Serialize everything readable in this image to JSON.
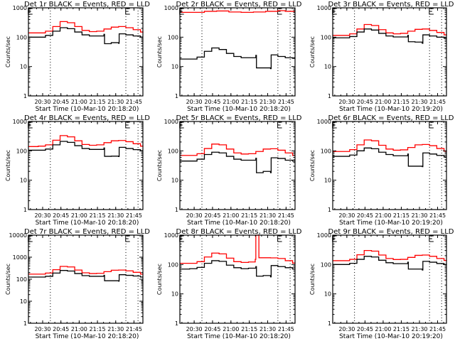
{
  "chart_data": [
    {
      "type": "line",
      "title": "Det 1r BLACK = Events, RED = LLD",
      "xlabel": "Start Time (10-Mar-10 20:18:20)",
      "ylabel": "Counts/sec",
      "yscale": "log",
      "ylim": [
        1,
        1000
      ],
      "yticks": [
        "1",
        "10",
        "100",
        "1000"
      ],
      "xticks": [
        "20:30",
        "20:45",
        "21:00",
        "21:15",
        "21:30",
        "21:45"
      ],
      "xlim_minutes": [
        20.0,
        114.0
      ],
      "event_marks_minutes": [
        38.0,
        100.0,
        110.0
      ],
      "series": [
        {
          "name": "LLD",
          "color": "#ff0000",
          "x": [
            20,
            28,
            34,
            40,
            46,
            52,
            58,
            64,
            70,
            76,
            82,
            88,
            94,
            100,
            106,
            112,
            114
          ],
          "values": [
            140,
            140,
            160,
            230,
            340,
            310,
            230,
            170,
            155,
            160,
            190,
            220,
            230,
            210,
            180,
            150,
            140
          ]
        },
        {
          "name": "Events",
          "color": "#000000",
          "x": [
            20,
            28,
            34,
            40,
            46,
            52,
            58,
            64,
            70,
            76,
            82,
            82.5,
            88,
            94,
            94.5,
            100,
            106,
            112,
            114
          ],
          "values": [
            100,
            100,
            115,
            160,
            210,
            195,
            150,
            120,
            110,
            110,
            125,
            60,
            65,
            62,
            130,
            120,
            110,
            100,
            100
          ]
        }
      ]
    },
    {
      "type": "line",
      "title": "Det 2r BLACK = Events, RED = LLD",
      "xlabel": "Start Time (10-Mar-10 20:18:20)",
      "ylabel": "Counts/sec",
      "yscale": "log",
      "ylim": [
        1,
        1000
      ],
      "yticks": [
        "1",
        "10",
        "100",
        "1000"
      ],
      "xticks": [
        "20:30",
        "20:45",
        "21:00",
        "21:15",
        "21:30",
        "21:45"
      ],
      "xlim_minutes": [
        20.0,
        114.0
      ],
      "event_marks_minutes": [
        38.0,
        100.0,
        110.0
      ],
      "series": [
        {
          "name": "LLD",
          "color": "#ff0000",
          "x": [
            20,
            30,
            40,
            50,
            60,
            70,
            80,
            90,
            100,
            106,
            114
          ],
          "values": [
            700,
            700,
            760,
            780,
            720,
            700,
            720,
            760,
            800,
            760,
            760
          ]
        },
        {
          "name": "Events",
          "color": "#000000",
          "x": [
            20,
            28,
            34,
            40,
            46,
            52,
            58,
            64,
            70,
            76,
            82,
            82.5,
            88,
            94,
            94.5,
            100,
            106,
            112,
            114
          ],
          "values": [
            18,
            18,
            21,
            33,
            43,
            38,
            28,
            22,
            20,
            20,
            24,
            9,
            9,
            8.5,
            25,
            22,
            20,
            19,
            19
          ]
        }
      ]
    },
    {
      "type": "line",
      "title": "Det 3r BLACK = Events, RED = LLD",
      "xlabel": "Start Time (10-Mar-10 20:19:20)",
      "ylabel": "Counts/sec",
      "yscale": "log",
      "ylim": [
        1,
        1000
      ],
      "yticks": [
        "1",
        "10",
        "100",
        "1000"
      ],
      "xticks": [
        "20:30",
        "20:45",
        "21:00",
        "21:15",
        "21:30",
        "21:45"
      ],
      "xlim_minutes": [
        20.0,
        114.0
      ],
      "event_marks_minutes": [
        38.0,
        100.0,
        110.0
      ],
      "series": [
        {
          "name": "LLD",
          "color": "#ff0000",
          "x": [
            20,
            28,
            34,
            40,
            46,
            52,
            58,
            64,
            70,
            76,
            82,
            88,
            94,
            100,
            106,
            112,
            114
          ],
          "values": [
            115,
            115,
            130,
            190,
            270,
            250,
            180,
            140,
            130,
            135,
            160,
            185,
            190,
            170,
            145,
            120,
            115
          ]
        },
        {
          "name": "Events",
          "color": "#000000",
          "x": [
            20,
            28,
            34,
            40,
            46,
            52,
            58,
            64,
            70,
            76,
            82,
            82.5,
            88,
            94,
            94.5,
            100,
            106,
            112,
            114
          ],
          "values": [
            95,
            95,
            105,
            150,
            190,
            175,
            135,
            110,
            102,
            102,
            115,
            70,
            68,
            62,
            120,
            110,
            100,
            92,
            92
          ]
        }
      ]
    },
    {
      "type": "line",
      "title": "Det 4r BLACK = Events, RED = LLD",
      "xlabel": "Start Time (10-Mar-10 20:18:20)",
      "ylabel": "Counts/sec",
      "yscale": "log",
      "ylim": [
        1,
        1000
      ],
      "yticks": [
        "1",
        "10",
        "100",
        "1000"
      ],
      "xticks": [
        "20:30",
        "20:45",
        "21:00",
        "21:15",
        "21:30",
        "21:45"
      ],
      "xlim_minutes": [
        20.0,
        114.0
      ],
      "event_marks_minutes": [
        38.0,
        100.0,
        110.0
      ],
      "series": [
        {
          "name": "LLD",
          "color": "#ff0000",
          "x": [
            20,
            28,
            34,
            40,
            46,
            52,
            58,
            64,
            70,
            76,
            82,
            88,
            94,
            100,
            106,
            112,
            114
          ],
          "values": [
            140,
            145,
            160,
            230,
            330,
            300,
            220,
            165,
            155,
            160,
            190,
            220,
            225,
            205,
            175,
            145,
            140
          ]
        },
        {
          "name": "Events",
          "color": "#000000",
          "x": [
            20,
            28,
            34,
            40,
            46,
            52,
            58,
            64,
            70,
            76,
            82,
            82.5,
            88,
            94,
            94.5,
            100,
            106,
            112,
            114
          ],
          "values": [
            105,
            105,
            115,
            160,
            210,
            195,
            150,
            120,
            112,
            112,
            125,
            65,
            66,
            64,
            132,
            120,
            110,
            100,
            100
          ]
        }
      ]
    },
    {
      "type": "line",
      "title": "Det 5r BLACK = Events, RED = LLD",
      "xlabel": "Start Time (10-Mar-10 20:18:20)",
      "ylabel": "Counts/sec",
      "yscale": "log",
      "ylim": [
        1,
        1000
      ],
      "yticks": [
        "1",
        "10",
        "100",
        "1000"
      ],
      "xticks": [
        "20:30",
        "20:45",
        "21:00",
        "21:15",
        "21:30",
        "21:45"
      ],
      "xlim_minutes": [
        20.0,
        114.0
      ],
      "event_marks_minutes": [
        38.0,
        100.0,
        110.0
      ],
      "series": [
        {
          "name": "LLD",
          "color": "#ff0000",
          "x": [
            20,
            28,
            34,
            40,
            46,
            52,
            58,
            64,
            70,
            76,
            82,
            88,
            94,
            100,
            106,
            112,
            114
          ],
          "values": [
            70,
            70,
            80,
            120,
            170,
            160,
            115,
            85,
            78,
            80,
            95,
            115,
            118,
            105,
            85,
            70,
            70
          ]
        },
        {
          "name": "Events",
          "color": "#000000",
          "x": [
            20,
            28,
            34,
            40,
            46,
            52,
            58,
            64,
            70,
            76,
            82,
            82.5,
            88,
            94,
            94.5,
            100,
            106,
            112,
            114
          ],
          "values": [
            45,
            45,
            52,
            75,
            90,
            85,
            65,
            52,
            48,
            48,
            56,
            18,
            20,
            18,
            58,
            55,
            48,
            45,
            45
          ]
        }
      ]
    },
    {
      "type": "line",
      "title": "Det 6r BLACK = Events, RED = LLD",
      "xlabel": "Start Time (10-Mar-10 20:19:20)",
      "ylabel": "Counts/sec",
      "yscale": "log",
      "ylim": [
        1,
        1000
      ],
      "yticks": [
        "1",
        "10",
        "100",
        "1000"
      ],
      "xticks": [
        "20:30",
        "20:45",
        "21:00",
        "21:15",
        "21:30",
        "21:45"
      ],
      "xlim_minutes": [
        20.0,
        114.0
      ],
      "event_marks_minutes": [
        38.0,
        100.0,
        110.0
      ],
      "series": [
        {
          "name": "LLD",
          "color": "#ff0000",
          "x": [
            20,
            28,
            34,
            40,
            46,
            52,
            58,
            64,
            70,
            76,
            82,
            88,
            94,
            100,
            106,
            112,
            114
          ],
          "values": [
            95,
            95,
            110,
            160,
            235,
            220,
            155,
            115,
            105,
            108,
            130,
            160,
            165,
            150,
            120,
            98,
            95
          ]
        },
        {
          "name": "Events",
          "color": "#000000",
          "x": [
            20,
            28,
            34,
            40,
            46,
            52,
            58,
            64,
            70,
            76,
            82,
            82.5,
            88,
            94,
            94.5,
            100,
            106,
            112,
            114
          ],
          "values": [
            65,
            65,
            72,
            100,
            125,
            118,
            90,
            75,
            68,
            68,
            78,
            30,
            30,
            29,
            85,
            78,
            70,
            62,
            62
          ]
        }
      ]
    },
    {
      "type": "line",
      "title": "Det 7r BLACK = Events, RED = LLD",
      "xlabel": "Start Time (10-Mar-10 20:18:20)",
      "ylabel": "Counts/sec",
      "yscale": "log",
      "ylim": [
        1,
        10000
      ],
      "yticks": [
        "1",
        "10",
        "100",
        "1000",
        "10000"
      ],
      "xticks": [
        "20:30",
        "20:45",
        "21:00",
        "21:15",
        "21:30",
        "21:45"
      ],
      "xlim_minutes": [
        20.0,
        114.0
      ],
      "event_marks_minutes": [
        38.0,
        100.0,
        110.0
      ],
      "series": [
        {
          "name": "LLD",
          "color": "#ff0000",
          "x": [
            20,
            28,
            34,
            40,
            46,
            52,
            58,
            64,
            70,
            76,
            82,
            88,
            94,
            100,
            106,
            112,
            114
          ],
          "values": [
            170,
            170,
            190,
            270,
            380,
            360,
            260,
            195,
            180,
            185,
            220,
            255,
            260,
            240,
            205,
            170,
            165
          ]
        },
        {
          "name": "Events",
          "color": "#000000",
          "x": [
            20,
            28,
            34,
            40,
            46,
            52,
            58,
            64,
            70,
            76,
            82,
            82.5,
            88,
            94,
            94.5,
            100,
            106,
            112,
            114
          ],
          "values": [
            125,
            125,
            135,
            190,
            250,
            235,
            180,
            145,
            135,
            135,
            150,
            85,
            85,
            82,
            160,
            150,
            140,
            125,
            125
          ]
        }
      ]
    },
    {
      "type": "line",
      "title": "Det 8r BLACK = Events, RED = LLD",
      "xlabel": "Start Time (10-Mar-10 20:18:20)",
      "ylabel": "Counts/sec",
      "yscale": "log",
      "ylim": [
        1,
        1000
      ],
      "yticks": [
        "1",
        "10",
        "100",
        "1000"
      ],
      "xticks": [
        "20:30",
        "20:45",
        "21:00",
        "21:15",
        "21:30",
        "21:45"
      ],
      "xlim_minutes": [
        20.0,
        114.0
      ],
      "event_marks_minutes": [
        38.0,
        100.0,
        110.0
      ],
      "series": [
        {
          "name": "LLD",
          "color": "#ff0000",
          "x": [
            20,
            28,
            34,
            40,
            46,
            52,
            58,
            64,
            70,
            76,
            81.5,
            82,
            82.5,
            84,
            84.5,
            88,
            94,
            100,
            106,
            112,
            114
          ],
          "values": [
            110,
            110,
            125,
            180,
            245,
            230,
            165,
            125,
            118,
            122,
            150,
            1000,
            1000,
            1000,
            170,
            170,
            168,
            160,
            135,
            112,
            110
          ]
        },
        {
          "name": "Events",
          "color": "#000000",
          "x": [
            20,
            28,
            34,
            40,
            46,
            52,
            58,
            64,
            70,
            76,
            82,
            82.5,
            88,
            94,
            94.5,
            100,
            106,
            112,
            114
          ],
          "values": [
            70,
            72,
            80,
            110,
            135,
            128,
            95,
            78,
            72,
            75,
            85,
            40,
            42,
            38,
            92,
            85,
            78,
            70,
            70
          ]
        }
      ]
    },
    {
      "type": "line",
      "title": "Det 9r BLACK = Events, RED = LLD",
      "xlabel": "Start Time (10-Mar-10 20:19:20)",
      "ylabel": "Counts/sec",
      "yscale": "log",
      "ylim": [
        1,
        1000
      ],
      "yticks": [
        "1",
        "10",
        "100",
        "1000"
      ],
      "xticks": [
        "20:30",
        "20:45",
        "21:00",
        "21:15",
        "21:30",
        "21:45"
      ],
      "xlim_minutes": [
        20.0,
        114.0
      ],
      "event_marks_minutes": [
        38.0,
        100.0,
        110.0
      ],
      "series": [
        {
          "name": "LLD",
          "color": "#ff0000",
          "x": [
            20,
            28,
            34,
            40,
            46,
            52,
            58,
            64,
            70,
            76,
            82,
            88,
            94,
            100,
            106,
            112,
            114
          ],
          "values": [
            135,
            135,
            150,
            215,
            300,
            285,
            210,
            160,
            148,
            150,
            175,
            205,
            210,
            190,
            160,
            138,
            132
          ]
        },
        {
          "name": "Events",
          "color": "#000000",
          "x": [
            20,
            28,
            34,
            40,
            46,
            52,
            58,
            64,
            70,
            76,
            82,
            82.5,
            88,
            94,
            94.5,
            100,
            106,
            112,
            114
          ],
          "values": [
            100,
            100,
            110,
            150,
            190,
            180,
            140,
            115,
            107,
            107,
            120,
            70,
            70,
            65,
            128,
            120,
            108,
            100,
            98
          ]
        }
      ]
    }
  ]
}
